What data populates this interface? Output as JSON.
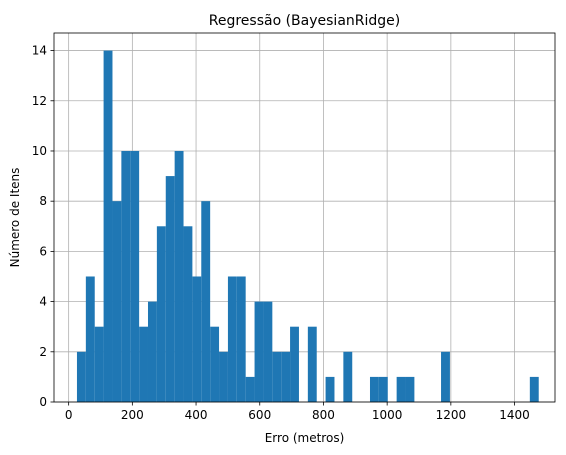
{
  "chart_data": {
    "type": "bar",
    "title": "Regressão (BayesianRidge)",
    "xlabel": "Erro (metros)",
    "ylabel": "Número de Itens",
    "xlim": [
      -46,
      1527
    ],
    "ylim": [
      0,
      14.7
    ],
    "xticks": [
      0,
      200,
      400,
      600,
      800,
      1000,
      1200,
      1400
    ],
    "yticks": [
      0,
      2,
      4,
      6,
      8,
      10,
      12,
      14
    ],
    "grid": true,
    "bar_color": "#1f77b4",
    "bin_edges": [
      26.1,
      54.0,
      81.9,
      109.7,
      137.6,
      165.5,
      193.4,
      221.3,
      249.1,
      277.0,
      304.9,
      332.8,
      360.7,
      388.5,
      416.4,
      444.3,
      472.2,
      500.1,
      527.9,
      555.8,
      583.7,
      611.6,
      639.5,
      667.3,
      695.2,
      723.1,
      751.0,
      778.9,
      806.7,
      834.6,
      862.5,
      890.4,
      918.3,
      946.1,
      974.0,
      1001.9,
      1029.8,
      1057.7,
      1085.5,
      1113.4,
      1141.3,
      1169.2,
      1197.1,
      1224.9,
      1252.8,
      1280.7,
      1308.6,
      1336.5,
      1364.3,
      1392.2,
      1420.1,
      1448.0,
      1475.9
    ],
    "counts": [
      2,
      5,
      3,
      14,
      8,
      10,
      10,
      3,
      4,
      7,
      9,
      10,
      7,
      5,
      8,
      3,
      2,
      5,
      5,
      1,
      4,
      4,
      2,
      2,
      3,
      0,
      3,
      0,
      1,
      0,
      2,
      0,
      0,
      1,
      1,
      0,
      1,
      1,
      0,
      0,
      0,
      2,
      0,
      0,
      0,
      0,
      0,
      0,
      0,
      0,
      0,
      1
    ]
  }
}
